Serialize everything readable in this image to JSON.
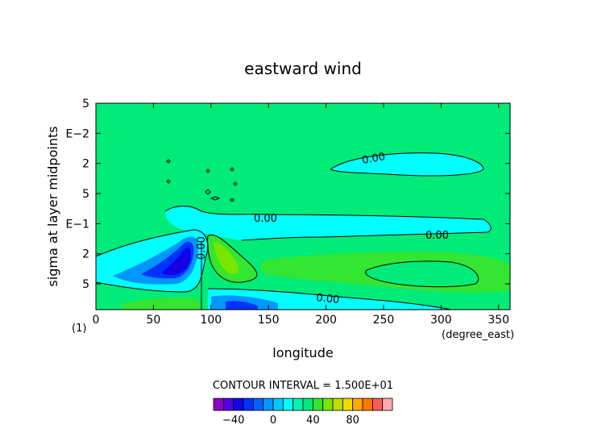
{
  "chart_data": {
    "type": "heatmap",
    "title": "eastward wind",
    "xlabel": "longitude",
    "ylabel": "sigma at layer midpoints",
    "x_units": "(degree_east)",
    "y_units": "(1)",
    "xlim": [
      0,
      360
    ],
    "x_ticks": [
      "0",
      "50",
      "100",
      "150",
      "200",
      "250",
      "300",
      "350"
    ],
    "y_tick_labels": [
      "5",
      "E−2",
      "2",
      "5",
      "E−1",
      "2",
      "5"
    ],
    "y_scale": "log",
    "contour_interval_label": "CONTOUR INTERVAL = 1.500E+01",
    "contour_labels": [
      "0.00",
      "0.00",
      "0.00",
      "0.00",
      "0.00"
    ],
    "colorbar": {
      "tick_labels": [
        "−40",
        "0",
        "40",
        "80"
      ],
      "colors": [
        "#8c00c8",
        "#5000e0",
        "#1400e6",
        "#0032ff",
        "#0064ff",
        "#0096ff",
        "#00c8ff",
        "#00ffff",
        "#00f5b4",
        "#00eb78",
        "#32e632",
        "#78e600",
        "#bedc00",
        "#f0dc00",
        "#ffaa00",
        "#ff7800",
        "#ff5a5a",
        "#ffaaaa"
      ]
    },
    "grid": false,
    "legend": "none"
  }
}
